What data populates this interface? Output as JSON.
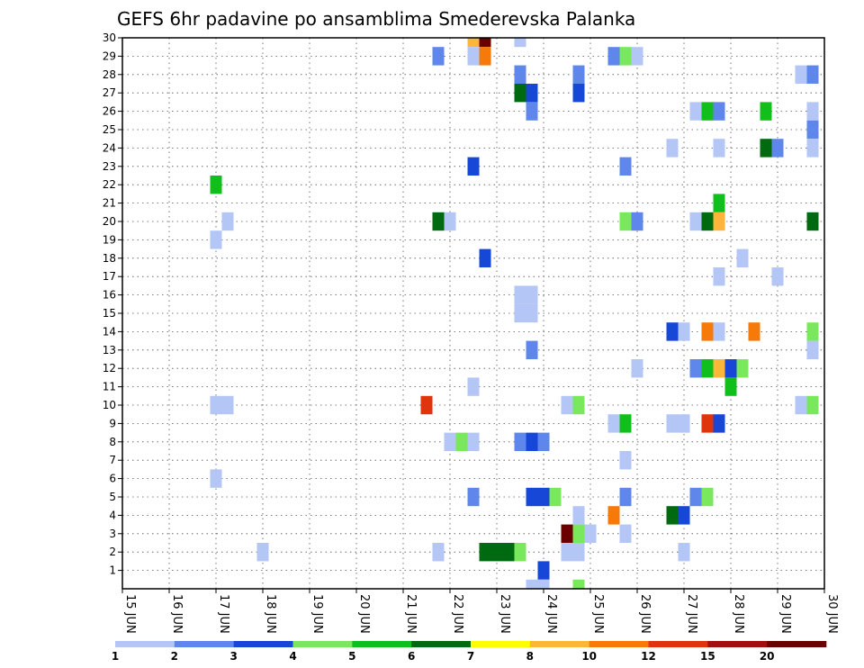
{
  "chart_data": {
    "type": "heatmap",
    "title": "GEFS 6hr padavine po ansamblima Smederevska Palanka",
    "x_tick_labels": [
      "15 JUN",
      "16 JUN",
      "17 JUN",
      "18 JUN",
      "19 JUN",
      "20 JUN",
      "21 JUN",
      "22 JUN",
      "23 JUN",
      "24 JUN",
      "25 JUN",
      "26 JUN",
      "27 JUN",
      "28 JUN",
      "29 JUN",
      "30 JUN"
    ],
    "y_tick_labels": [
      1,
      2,
      3,
      4,
      5,
      6,
      7,
      8,
      9,
      10,
      11,
      12,
      13,
      14,
      15,
      16,
      17,
      18,
      19,
      20,
      21,
      22,
      23,
      24,
      25,
      26,
      27,
      28,
      29,
      30
    ],
    "xlim_days": [
      15,
      30
    ],
    "ylim": [
      0,
      30
    ],
    "grid": true,
    "colorbar": {
      "labels": [
        "1",
        "2",
        "3",
        "4",
        "5",
        "6",
        "7",
        "8",
        "10",
        "12",
        "15",
        "20"
      ],
      "colors": [
        "#b3c6f5",
        "#5f86ea",
        "#1747d6",
        "#7ae85c",
        "#10bf1c",
        "#006a10",
        "#ffff00",
        "#ffb43a",
        "#f57a0a",
        "#e0350c",
        "#a01010",
        "#6b0000"
      ]
    },
    "cells": [
      {
        "day": 17.0,
        "member": 22,
        "cls": 5
      },
      {
        "day": 17.0,
        "member": 19,
        "cls": 1
      },
      {
        "day": 17.25,
        "member": 20,
        "cls": 1
      },
      {
        "day": 17.0,
        "member": 10,
        "cls": 1
      },
      {
        "day": 17.25,
        "member": 10,
        "cls": 1
      },
      {
        "day": 17.0,
        "member": 6,
        "cls": 1
      },
      {
        "day": 18.0,
        "member": 2,
        "cls": 1
      },
      {
        "day": 21.5,
        "member": 10,
        "cls": 10
      },
      {
        "day": 21.75,
        "member": 29,
        "cls": 2
      },
      {
        "day": 21.75,
        "member": 20,
        "cls": 6
      },
      {
        "day": 22.0,
        "member": 20,
        "cls": 1
      },
      {
        "day": 21.75,
        "member": 2,
        "cls": 1
      },
      {
        "day": 22.0,
        "member": 8,
        "cls": 1
      },
      {
        "day": 22.25,
        "member": 8,
        "cls": 4
      },
      {
        "day": 22.5,
        "member": 8,
        "cls": 1
      },
      {
        "day": 22.5,
        "member": 11,
        "cls": 1
      },
      {
        "day": 22.5,
        "member": 23,
        "cls": 3
      },
      {
        "day": 22.5,
        "member": 5,
        "cls": 2
      },
      {
        "day": 22.5,
        "member": 30,
        "cls": 8
      },
      {
        "day": 22.75,
        "member": 30,
        "cls": 12
      },
      {
        "day": 22.5,
        "member": 29,
        "cls": 1
      },
      {
        "day": 22.75,
        "member": 29,
        "cls": 9
      },
      {
        "day": 22.75,
        "member": 18,
        "cls": 3
      },
      {
        "day": 22.75,
        "member": 2,
        "cls": 6
      },
      {
        "day": 23.0,
        "member": 2,
        "cls": 6
      },
      {
        "day": 23.25,
        "member": 2,
        "cls": 6
      },
      {
        "day": 23.5,
        "member": 2,
        "cls": 4
      },
      {
        "day": 23.5,
        "member": 30,
        "cls": 1
      },
      {
        "day": 23.5,
        "member": 28,
        "cls": 2
      },
      {
        "day": 23.5,
        "member": 27,
        "cls": 6
      },
      {
        "day": 23.75,
        "member": 27,
        "cls": 3
      },
      {
        "day": 23.75,
        "member": 26,
        "cls": 2
      },
      {
        "day": 23.5,
        "member": 15,
        "cls": 1
      },
      {
        "day": 23.75,
        "member": 15,
        "cls": 1
      },
      {
        "day": 23.5,
        "member": 16,
        "cls": 1
      },
      {
        "day": 23.75,
        "member": 16,
        "cls": 1
      },
      {
        "day": 23.75,
        "member": 13,
        "cls": 2
      },
      {
        "day": 23.5,
        "member": 8,
        "cls": 2
      },
      {
        "day": 23.75,
        "member": 8,
        "cls": 3
      },
      {
        "day": 24.0,
        "member": 8,
        "cls": 2
      },
      {
        "day": 23.75,
        "member": 5,
        "cls": 3
      },
      {
        "day": 24.0,
        "member": 5,
        "cls": 3
      },
      {
        "day": 24.25,
        "member": 5,
        "cls": 4
      },
      {
        "day": 24.0,
        "member": 1,
        "cls": 3
      },
      {
        "day": 23.75,
        "member": 0,
        "cls": 1
      },
      {
        "day": 24.0,
        "member": 0,
        "cls": 1
      },
      {
        "day": 24.5,
        "member": 10,
        "cls": 1
      },
      {
        "day": 24.75,
        "member": 10,
        "cls": 4
      },
      {
        "day": 24.75,
        "member": 4,
        "cls": 1
      },
      {
        "day": 24.5,
        "member": 3,
        "cls": 12
      },
      {
        "day": 24.75,
        "member": 3,
        "cls": 4
      },
      {
        "day": 25.0,
        "member": 3,
        "cls": 1
      },
      {
        "day": 24.5,
        "member": 2,
        "cls": 1
      },
      {
        "day": 24.75,
        "member": 2,
        "cls": 1
      },
      {
        "day": 24.75,
        "member": 0,
        "cls": 4
      },
      {
        "day": 24.75,
        "member": 28,
        "cls": 2
      },
      {
        "day": 24.75,
        "member": 27,
        "cls": 3
      },
      {
        "day": 25.5,
        "member": 29,
        "cls": 2
      },
      {
        "day": 25.75,
        "member": 29,
        "cls": 4
      },
      {
        "day": 26.0,
        "member": 29,
        "cls": 1
      },
      {
        "day": 25.75,
        "member": 23,
        "cls": 2
      },
      {
        "day": 25.75,
        "member": 20,
        "cls": 4
      },
      {
        "day": 26.0,
        "member": 20,
        "cls": 2
      },
      {
        "day": 26.0,
        "member": 12,
        "cls": 1
      },
      {
        "day": 25.5,
        "member": 9,
        "cls": 1
      },
      {
        "day": 25.75,
        "member": 9,
        "cls": 5
      },
      {
        "day": 25.75,
        "member": 7,
        "cls": 1
      },
      {
        "day": 25.75,
        "member": 5,
        "cls": 2
      },
      {
        "day": 25.5,
        "member": 4,
        "cls": 9
      },
      {
        "day": 25.75,
        "member": 3,
        "cls": 1
      },
      {
        "day": 26.75,
        "member": 24,
        "cls": 1
      },
      {
        "day": 26.75,
        "member": 14,
        "cls": 3
      },
      {
        "day": 27.0,
        "member": 14,
        "cls": 1
      },
      {
        "day": 26.75,
        "member": 9,
        "cls": 1
      },
      {
        "day": 27.0,
        "member": 9,
        "cls": 1
      },
      {
        "day": 26.75,
        "member": 4,
        "cls": 6
      },
      {
        "day": 27.0,
        "member": 4,
        "cls": 3
      },
      {
        "day": 27.0,
        "member": 2,
        "cls": 1
      },
      {
        "day": 27.25,
        "member": 26,
        "cls": 1
      },
      {
        "day": 27.5,
        "member": 26,
        "cls": 5
      },
      {
        "day": 27.75,
        "member": 26,
        "cls": 2
      },
      {
        "day": 27.75,
        "member": 24,
        "cls": 1
      },
      {
        "day": 27.75,
        "member": 21,
        "cls": 5
      },
      {
        "day": 27.25,
        "member": 20,
        "cls": 1
      },
      {
        "day": 27.5,
        "member": 20,
        "cls": 6
      },
      {
        "day": 27.75,
        "member": 20,
        "cls": 8
      },
      {
        "day": 27.75,
        "member": 17,
        "cls": 1
      },
      {
        "day": 27.5,
        "member": 14,
        "cls": 9
      },
      {
        "day": 27.75,
        "member": 14,
        "cls": 1
      },
      {
        "day": 27.25,
        "member": 12,
        "cls": 2
      },
      {
        "day": 27.5,
        "member": 12,
        "cls": 5
      },
      {
        "day": 27.75,
        "member": 12,
        "cls": 8
      },
      {
        "day": 28.0,
        "member": 12,
        "cls": 3
      },
      {
        "day": 28.25,
        "member": 12,
        "cls": 4
      },
      {
        "day": 28.0,
        "member": 11,
        "cls": 5
      },
      {
        "day": 27.5,
        "member": 9,
        "cls": 10
      },
      {
        "day": 27.75,
        "member": 9,
        "cls": 3
      },
      {
        "day": 27.25,
        "member": 5,
        "cls": 2
      },
      {
        "day": 27.5,
        "member": 5,
        "cls": 4
      },
      {
        "day": 28.25,
        "member": 18,
        "cls": 1
      },
      {
        "day": 28.5,
        "member": 14,
        "cls": 9
      },
      {
        "day": 28.75,
        "member": 26,
        "cls": 5
      },
      {
        "day": 28.75,
        "member": 24,
        "cls": 6
      },
      {
        "day": 29.0,
        "member": 24,
        "cls": 2
      },
      {
        "day": 29.0,
        "member": 17,
        "cls": 1
      },
      {
        "day": 29.5,
        "member": 28,
        "cls": 1
      },
      {
        "day": 29.75,
        "member": 28,
        "cls": 2
      },
      {
        "day": 29.75,
        "member": 26,
        "cls": 1
      },
      {
        "day": 29.75,
        "member": 25,
        "cls": 2
      },
      {
        "day": 29.75,
        "member": 24,
        "cls": 1
      },
      {
        "day": 29.75,
        "member": 20,
        "cls": 6
      },
      {
        "day": 29.75,
        "member": 14,
        "cls": 4
      },
      {
        "day": 29.75,
        "member": 13,
        "cls": 1
      },
      {
        "day": 29.5,
        "member": 10,
        "cls": 1
      },
      {
        "day": 29.75,
        "member": 10,
        "cls": 4
      }
    ]
  }
}
